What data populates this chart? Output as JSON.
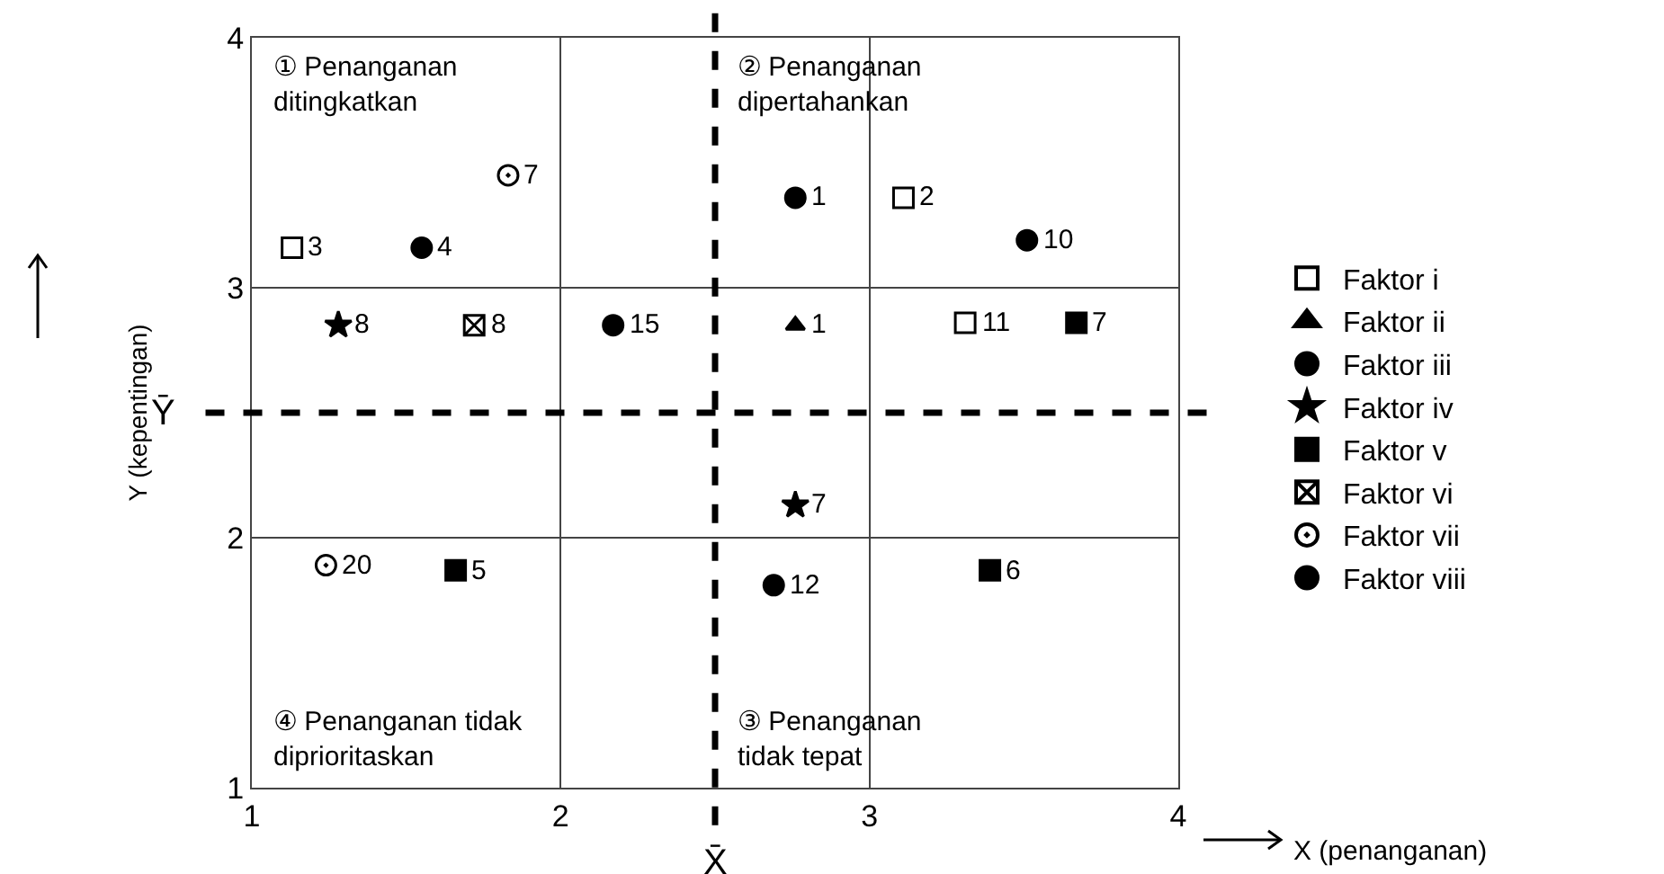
{
  "chart_data": {
    "type": "scatter",
    "xlabel": "X (penanganan)",
    "ylabel": "Y (kepentingan)",
    "xlim": [
      1,
      4
    ],
    "ylim": [
      1,
      4
    ],
    "xticks": [
      1,
      2,
      3,
      4
    ],
    "yticks": [
      1,
      2,
      3,
      4
    ],
    "grid": true,
    "legend": "right",
    "series": [
      {
        "name": "Faktor i",
        "color": "#000000",
        "marker": "square",
        "x": [
          1.13,
          3.11,
          3.31
        ],
        "values": [
          3.16,
          3.36,
          2.86
        ]
      },
      {
        "name": "Faktor ii",
        "color": "#000000",
        "marker": "triangle",
        "x": [
          2.76
        ],
        "values": [
          2.85
        ]
      },
      {
        "name": "Faktor iii",
        "color": "#000000",
        "marker": "circle",
        "x": [
          1.55,
          2.76,
          3.51
        ],
        "values": [
          3.16,
          3.36,
          3.19
        ]
      },
      {
        "name": "Faktor iv",
        "color": "#000000",
        "marker": "star",
        "x": [
          1.28,
          2.76
        ],
        "values": [
          2.85,
          2.13
        ]
      },
      {
        "name": "Faktor v",
        "color": "#000000",
        "marker": "square",
        "x": [
          3.67,
          1.66,
          3.39
        ],
        "values": [
          2.86,
          1.87,
          1.87
        ]
      },
      {
        "name": "Faktor vi",
        "color": "#000000",
        "marker": "cross",
        "x": [
          1.72
        ],
        "values": [
          2.85
        ]
      },
      {
        "name": "Faktor vii",
        "color": "#000000",
        "marker": "circle",
        "x": [
          1.83,
          1.24
        ],
        "values": [
          3.45,
          1.89
        ]
      },
      {
        "name": "Faktor viii",
        "color": "#000000",
        "marker": "circle",
        "x": [
          2.17,
          2.69
        ],
        "values": [
          2.85,
          1.81
        ]
      }
    ],
    "ref_lines": [
      {
        "axis": "x",
        "value": 2.5,
        "label": "X̄",
        "color": "#000000",
        "line_style": "dashed"
      },
      {
        "axis": "y",
        "value": 2.5,
        "label": "Ȳ",
        "color": "#000000",
        "line_style": "dashed"
      }
    ],
    "annotations": [
      "① Penanganan\nditingkatkan",
      "② Penanganan\ndipertahankan",
      "④ Penanganan tidak\ndiprioritaskan",
      "③ Penanganan\ntidak tepat",
      {
        "text": "3",
        "x": 1.13,
        "y": 3.16
      },
      {
        "text": "2",
        "x": 3.11,
        "y": 3.36
      },
      {
        "text": "11",
        "x": 3.31,
        "y": 2.86
      },
      {
        "text": "1",
        "x": 2.76,
        "y": 2.85
      },
      {
        "text": "4",
        "x": 1.55,
        "y": 3.16
      },
      {
        "text": "1",
        "x": 2.76,
        "y": 3.36
      },
      {
        "text": "10",
        "x": 3.51,
        "y": 3.19
      },
      {
        "text": "8",
        "x": 1.28,
        "y": 2.85
      },
      {
        "text": "7",
        "x": 2.76,
        "y": 2.13
      },
      {
        "text": "7",
        "x": 3.67,
        "y": 2.86
      },
      {
        "text": "5",
        "x": 1.66,
        "y": 1.87
      },
      {
        "text": "6",
        "x": 3.39,
        "y": 1.87
      },
      {
        "text": "8",
        "x": 1.72,
        "y": 2.85
      },
      {
        "text": "7",
        "x": 1.83,
        "y": 3.45
      },
      {
        "text": "20",
        "x": 1.24,
        "y": 1.89
      },
      {
        "text": "15",
        "x": 2.17,
        "y": 2.85
      },
      {
        "text": "12",
        "x": 2.69,
        "y": 1.81
      }
    ]
  }
}
